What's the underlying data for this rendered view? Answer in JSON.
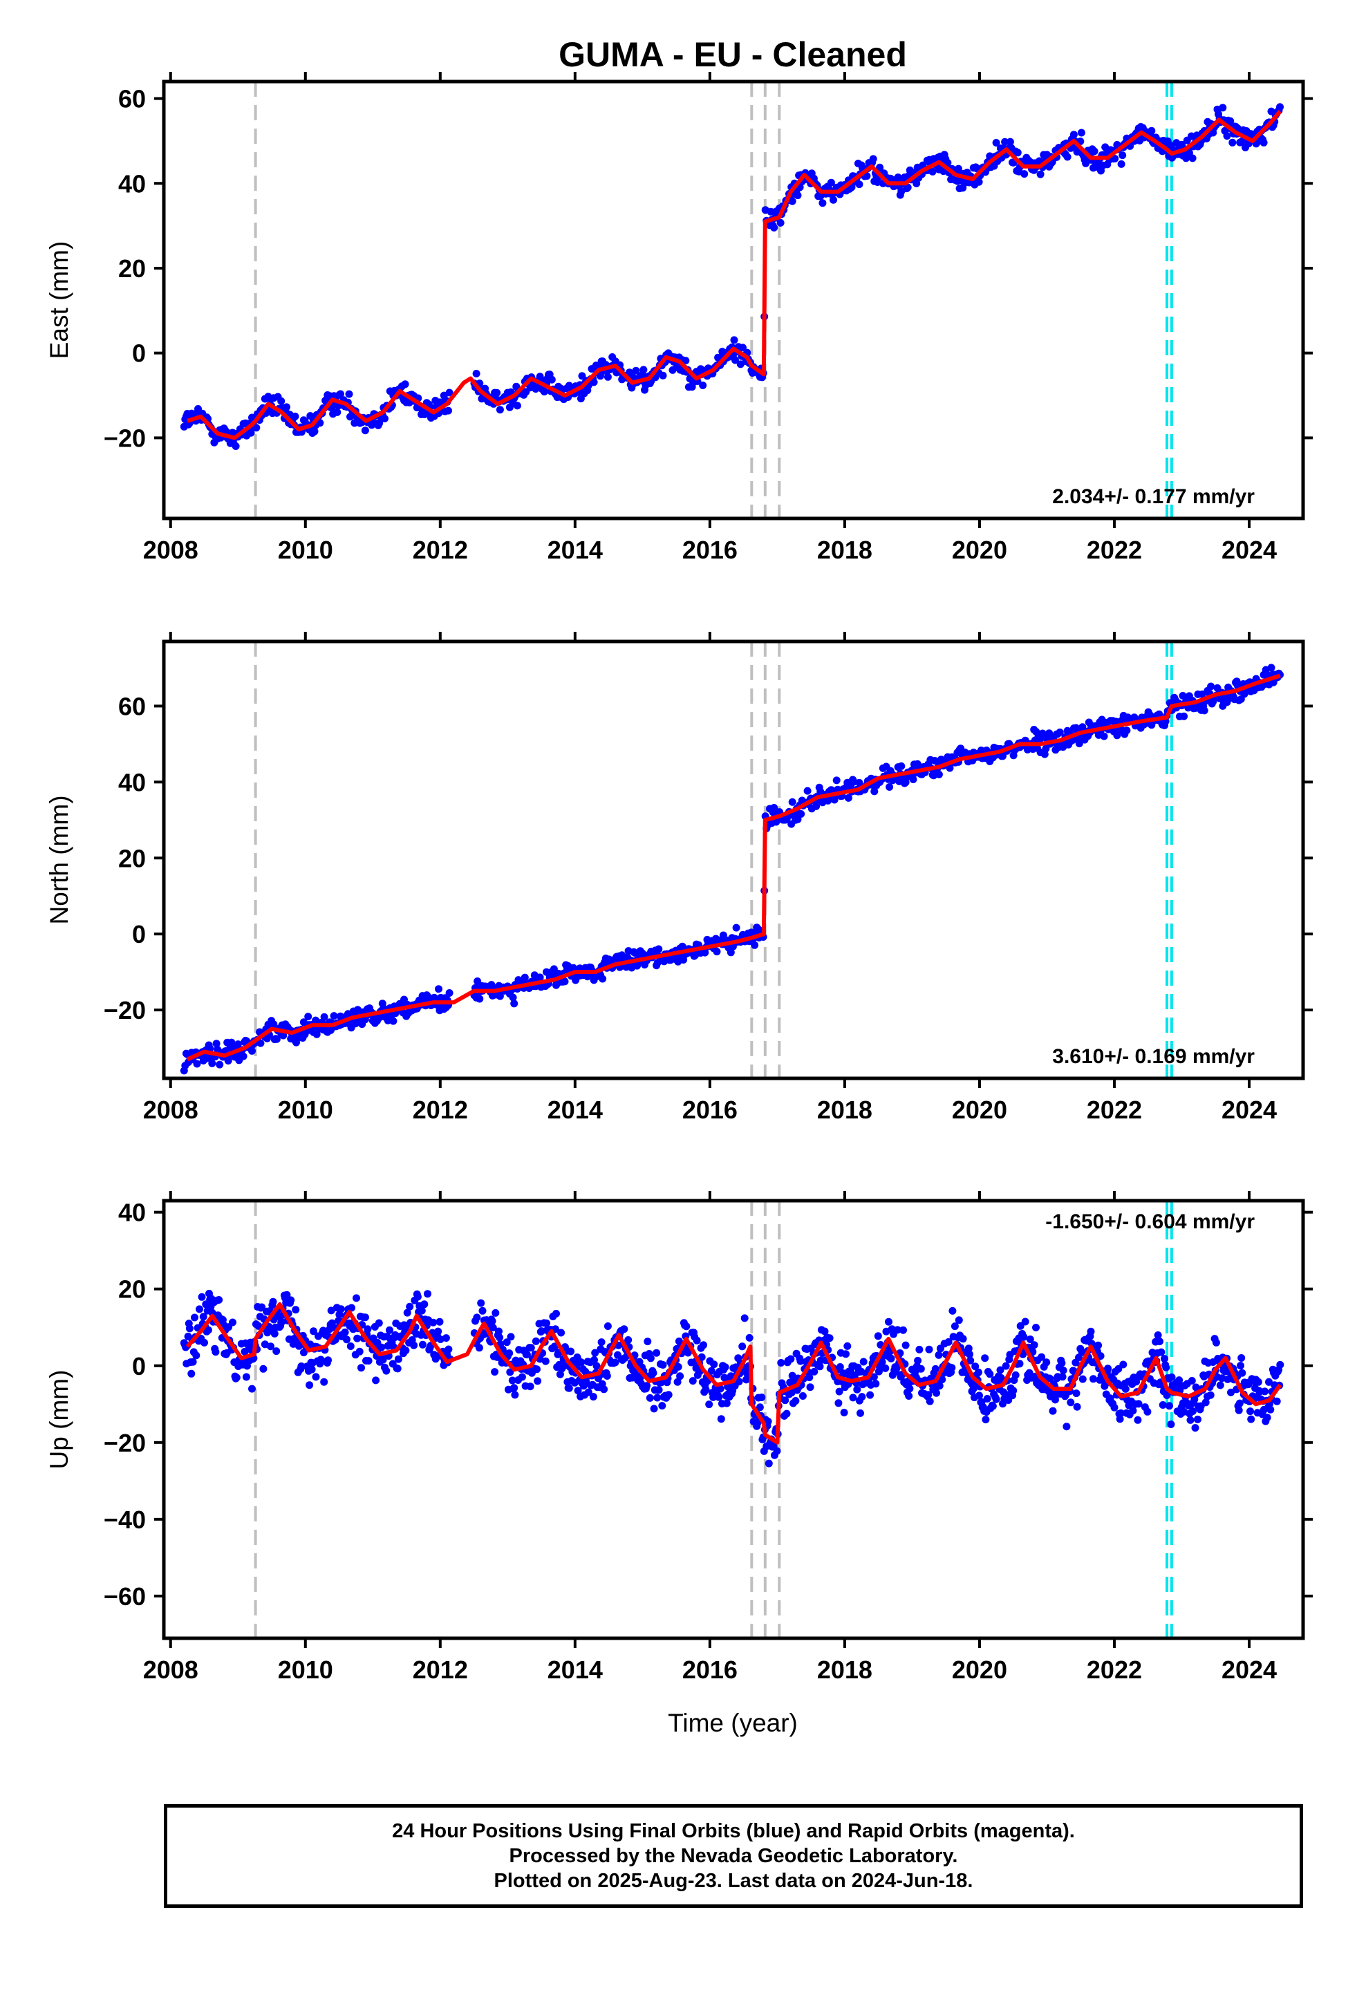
{
  "chart_data": {
    "type": "scatter",
    "title": "GUMA  - EU - Cleaned",
    "xlabel": "Time (year)",
    "x_ticks": [
      2008,
      2010,
      2012,
      2014,
      2016,
      2018,
      2020,
      2022,
      2024
    ],
    "xlim": [
      2007.9,
      2024.8
    ],
    "event_lines": {
      "gray": [
        2009.26,
        2016.62,
        2016.82,
        2017.03
      ],
      "cyan": [
        2022.78,
        2022.85
      ]
    },
    "colors": {
      "points": "#0000ff",
      "fit": "#ff0000",
      "gray_line": "#bfbfbf",
      "cyan_line": "#00e5ee"
    },
    "panels": [
      {
        "ylabel": "East (mm)",
        "ylim": [
          -39,
          64
        ],
        "y_ticks": [
          60,
          40,
          20,
          0,
          -20
        ],
        "rate_text": "2.034+/- 0.177 mm/yr",
        "rate_position": "bottom-right",
        "fit": [
          [
            2008.25,
            -16
          ],
          [
            2008.45,
            -15
          ],
          [
            2008.7,
            -19
          ],
          [
            2008.95,
            -20
          ],
          [
            2009.2,
            -17
          ],
          [
            2009.26,
            -16
          ],
          [
            2009.45,
            -12
          ],
          [
            2009.65,
            -14
          ],
          [
            2009.9,
            -18
          ],
          [
            2010.1,
            -17
          ],
          [
            2010.4,
            -11
          ],
          [
            2010.6,
            -12
          ],
          [
            2010.9,
            -16
          ],
          [
            2011.15,
            -14
          ],
          [
            2011.4,
            -9
          ],
          [
            2011.6,
            -11
          ],
          [
            2011.9,
            -14
          ],
          [
            2012.1,
            -12
          ],
          [
            2012.35,
            -7
          ],
          [
            2012.45,
            -6
          ],
          [
            2012.6,
            -9
          ],
          [
            2012.85,
            -12
          ],
          [
            2013.1,
            -10
          ],
          [
            2013.35,
            -6
          ],
          [
            2013.6,
            -8
          ],
          [
            2013.85,
            -10
          ],
          [
            2014.1,
            -8
          ],
          [
            2014.35,
            -4
          ],
          [
            2014.6,
            -3
          ],
          [
            2014.85,
            -7
          ],
          [
            2015.1,
            -6
          ],
          [
            2015.35,
            -1
          ],
          [
            2015.55,
            -2
          ],
          [
            2015.8,
            -6
          ],
          [
            2016.05,
            -4
          ],
          [
            2016.35,
            1
          ],
          [
            2016.55,
            -1
          ],
          [
            2016.62,
            -3
          ],
          [
            2016.8,
            -5
          ],
          [
            2016.82,
            31
          ],
          [
            2017.03,
            32
          ],
          [
            2017.2,
            38
          ],
          [
            2017.4,
            42
          ],
          [
            2017.65,
            38
          ],
          [
            2017.9,
            38
          ],
          [
            2018.15,
            41
          ],
          [
            2018.4,
            44
          ],
          [
            2018.65,
            40
          ],
          [
            2018.9,
            40
          ],
          [
            2019.15,
            43
          ],
          [
            2019.4,
            45
          ],
          [
            2019.65,
            42
          ],
          [
            2019.9,
            41
          ],
          [
            2020.15,
            45
          ],
          [
            2020.4,
            48
          ],
          [
            2020.65,
            44
          ],
          [
            2020.9,
            44
          ],
          [
            2021.15,
            47
          ],
          [
            2021.4,
            50
          ],
          [
            2021.65,
            46
          ],
          [
            2021.9,
            46
          ],
          [
            2022.15,
            49
          ],
          [
            2022.4,
            52
          ],
          [
            2022.6,
            50
          ],
          [
            2022.78,
            48
          ],
          [
            2022.85,
            47
          ],
          [
            2023.05,
            48
          ],
          [
            2023.3,
            51
          ],
          [
            2023.55,
            55
          ],
          [
            2023.8,
            52
          ],
          [
            2024.05,
            50
          ],
          [
            2024.3,
            54
          ],
          [
            2024.46,
            57
          ]
        ]
      },
      {
        "ylabel": "North (mm)",
        "ylim": [
          -38,
          77
        ],
        "y_ticks": [
          60,
          40,
          20,
          0,
          -20
        ],
        "rate_text": "3.610+/- 0.169 mm/yr",
        "rate_position": "bottom-right",
        "fit": [
          [
            2008.25,
            -33
          ],
          [
            2008.5,
            -31
          ],
          [
            2008.8,
            -32
          ],
          [
            2009.1,
            -30
          ],
          [
            2009.26,
            -28
          ],
          [
            2009.5,
            -25
          ],
          [
            2009.8,
            -26
          ],
          [
            2010.1,
            -24
          ],
          [
            2010.4,
            -24
          ],
          [
            2010.7,
            -22
          ],
          [
            2011.0,
            -21
          ],
          [
            2011.3,
            -20
          ],
          [
            2011.6,
            -19
          ],
          [
            2011.9,
            -18
          ],
          [
            2012.2,
            -18
          ],
          [
            2012.5,
            -15
          ],
          [
            2012.8,
            -15
          ],
          [
            2013.1,
            -14
          ],
          [
            2013.4,
            -13
          ],
          [
            2013.7,
            -12
          ],
          [
            2014.0,
            -10
          ],
          [
            2014.3,
            -10
          ],
          [
            2014.6,
            -8
          ],
          [
            2014.9,
            -7
          ],
          [
            2015.2,
            -6
          ],
          [
            2015.5,
            -5
          ],
          [
            2015.8,
            -4
          ],
          [
            2016.1,
            -3
          ],
          [
            2016.4,
            -2
          ],
          [
            2016.62,
            -1
          ],
          [
            2016.8,
            0
          ],
          [
            2016.82,
            30
          ],
          [
            2017.03,
            31
          ],
          [
            2017.3,
            33
          ],
          [
            2017.6,
            36
          ],
          [
            2017.9,
            37
          ],
          [
            2018.2,
            38
          ],
          [
            2018.5,
            41
          ],
          [
            2018.8,
            42
          ],
          [
            2019.1,
            43
          ],
          [
            2019.4,
            44
          ],
          [
            2019.7,
            46
          ],
          [
            2020.0,
            47
          ],
          [
            2020.3,
            48
          ],
          [
            2020.6,
            50
          ],
          [
            2020.9,
            50
          ],
          [
            2021.2,
            51
          ],
          [
            2021.5,
            53
          ],
          [
            2021.8,
            54
          ],
          [
            2022.1,
            55
          ],
          [
            2022.4,
            56
          ],
          [
            2022.78,
            57
          ],
          [
            2022.85,
            60
          ],
          [
            2023.2,
            61
          ],
          [
            2023.5,
            63
          ],
          [
            2023.8,
            64
          ],
          [
            2024.1,
            66
          ],
          [
            2024.46,
            68
          ]
        ]
      },
      {
        "ylabel": "Up (mm)",
        "ylim": [
          -71,
          43
        ],
        "y_ticks": [
          40,
          20,
          0,
          -20,
          -40,
          -60
        ],
        "rate_text": "-1.650+/- 0.604 mm/yr",
        "rate_position": "top-right",
        "fit": [
          [
            2008.25,
            5
          ],
          [
            2008.45,
            9
          ],
          [
            2008.62,
            13
          ],
          [
            2008.85,
            7
          ],
          [
            2009.05,
            2
          ],
          [
            2009.24,
            3
          ],
          [
            2009.26,
            7
          ],
          [
            2009.45,
            12
          ],
          [
            2009.62,
            16
          ],
          [
            2009.85,
            9
          ],
          [
            2010.05,
            4
          ],
          [
            2010.3,
            5
          ],
          [
            2010.5,
            10
          ],
          [
            2010.65,
            14
          ],
          [
            2010.9,
            7
          ],
          [
            2011.1,
            3
          ],
          [
            2011.35,
            4
          ],
          [
            2011.55,
            9
          ],
          [
            2011.65,
            13
          ],
          [
            2011.9,
            6
          ],
          [
            2012.1,
            1
          ],
          [
            2012.4,
            3
          ],
          [
            2012.55,
            8
          ],
          [
            2012.65,
            11
          ],
          [
            2012.9,
            3
          ],
          [
            2013.1,
            -1
          ],
          [
            2013.35,
            0
          ],
          [
            2013.5,
            5
          ],
          [
            2013.65,
            9
          ],
          [
            2013.9,
            1
          ],
          [
            2014.1,
            -3
          ],
          [
            2014.35,
            -2
          ],
          [
            2014.5,
            3
          ],
          [
            2014.65,
            8
          ],
          [
            2014.9,
            0
          ],
          [
            2015.1,
            -4
          ],
          [
            2015.35,
            -3
          ],
          [
            2015.5,
            2
          ],
          [
            2015.65,
            7
          ],
          [
            2015.9,
            -1
          ],
          [
            2016.1,
            -5
          ],
          [
            2016.35,
            -4
          ],
          [
            2016.5,
            1
          ],
          [
            2016.6,
            5
          ],
          [
            2016.62,
            -10
          ],
          [
            2016.8,
            -15
          ],
          [
            2016.82,
            -18
          ],
          [
            2017.0,
            -20
          ],
          [
            2017.03,
            -7
          ],
          [
            2017.3,
            -5
          ],
          [
            2017.5,
            1
          ],
          [
            2017.65,
            6
          ],
          [
            2017.9,
            -3
          ],
          [
            2018.1,
            -4
          ],
          [
            2018.35,
            -3
          ],
          [
            2018.5,
            2
          ],
          [
            2018.65,
            7
          ],
          [
            2018.9,
            -2
          ],
          [
            2019.1,
            -5
          ],
          [
            2019.35,
            -4
          ],
          [
            2019.5,
            1
          ],
          [
            2019.65,
            6
          ],
          [
            2019.9,
            -3
          ],
          [
            2020.1,
            -6
          ],
          [
            2020.35,
            -5
          ],
          [
            2020.5,
            0
          ],
          [
            2020.65,
            6
          ],
          [
            2020.9,
            -3
          ],
          [
            2021.1,
            -6
          ],
          [
            2021.35,
            -6
          ],
          [
            2021.5,
            0
          ],
          [
            2021.65,
            5
          ],
          [
            2021.9,
            -4
          ],
          [
            2022.1,
            -8
          ],
          [
            2022.35,
            -7
          ],
          [
            2022.5,
            -2
          ],
          [
            2022.62,
            2
          ],
          [
            2022.78,
            -6
          ],
          [
            2022.85,
            -7
          ],
          [
            2023.1,
            -8
          ],
          [
            2023.35,
            -6
          ],
          [
            2023.5,
            -1
          ],
          [
            2023.65,
            2
          ],
          [
            2023.9,
            -7
          ],
          [
            2024.1,
            -10
          ],
          [
            2024.3,
            -9
          ],
          [
            2024.46,
            -5
          ]
        ]
      }
    ]
  },
  "footer": {
    "line1": "24 Hour Positions Using Final Orbits (blue) and Rapid Orbits (magenta).",
    "line2": "Processed by the Nevada Geodetic Laboratory.",
    "line3": "Plotted on 2025-Aug-23. Last data on 2024-Jun-18."
  }
}
